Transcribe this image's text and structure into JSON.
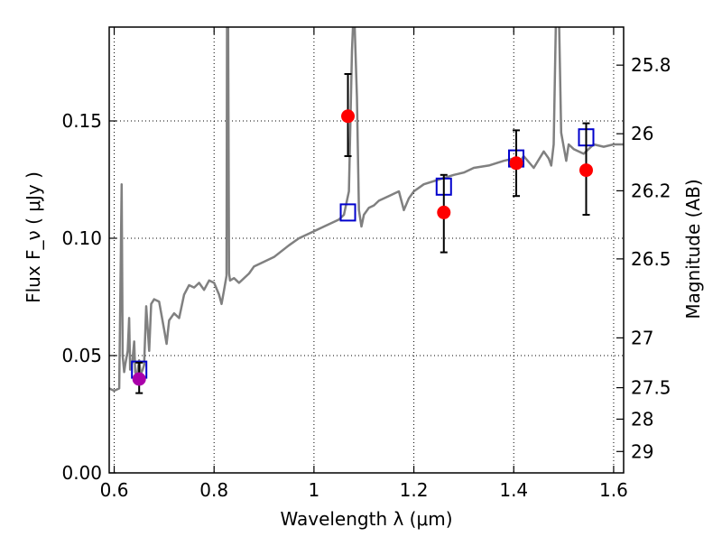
{
  "chart_data": {
    "type": "scatter",
    "xlabel": "Wavelength  λ (μm)",
    "ylabel": "Flux  F_ν  ( μJy )",
    "ylabel_right": "Magnitude (AB)",
    "xlim": [
      0.59,
      1.62
    ],
    "ylim": [
      0.0,
      0.19
    ],
    "x_ticks": [
      0.6,
      0.8,
      1.0,
      1.2,
      1.4,
      1.6
    ],
    "x_tick_labels": [
      "0.6",
      "0.8",
      "1",
      "1.2",
      "1.4",
      "1.6"
    ],
    "y_ticks": [
      0.0,
      0.05,
      0.1,
      0.15
    ],
    "y_tick_labels": [
      "0.00",
      "0.05",
      "0.10",
      "0.15"
    ],
    "right_ticks": [
      {
        "mag": 25.8,
        "label": "25.8"
      },
      {
        "mag": 26.0,
        "label": "26"
      },
      {
        "mag": 26.2,
        "label": "26.2"
      },
      {
        "mag": 26.5,
        "label": "26.5"
      },
      {
        "mag": 27.0,
        "label": "27"
      },
      {
        "mag": 27.5,
        "label": "27.5"
      },
      {
        "mag": 28.0,
        "label": "28"
      },
      {
        "mag": 29.0,
        "label": "29"
      }
    ],
    "grid": true,
    "colors": {
      "spectrum": "#808080",
      "observed": "#ff0000",
      "observed_uv": "#aa00aa",
      "model_box": "#0000cc",
      "errorbar": "#000000"
    },
    "spectrum": {
      "x": [
        0.59,
        0.6,
        0.61,
        0.615,
        0.617,
        0.62,
        0.622,
        0.627,
        0.63,
        0.632,
        0.636,
        0.64,
        0.642,
        0.645,
        0.648,
        0.65,
        0.653,
        0.657,
        0.66,
        0.664,
        0.67,
        0.674,
        0.68,
        0.69,
        0.7,
        0.705,
        0.71,
        0.72,
        0.73,
        0.74,
        0.75,
        0.76,
        0.77,
        0.78,
        0.79,
        0.8,
        0.81,
        0.815,
        0.82,
        0.825,
        0.826,
        0.828,
        0.83,
        0.832,
        0.84,
        0.85,
        0.87,
        0.88,
        0.9,
        0.92,
        0.95,
        0.97,
        1.0,
        1.02,
        1.05,
        1.06,
        1.07,
        1.076,
        1.08,
        1.086,
        1.09,
        1.095,
        1.1,
        1.11,
        1.12,
        1.13,
        1.15,
        1.17,
        1.18,
        1.19,
        1.2,
        1.22,
        1.25,
        1.28,
        1.3,
        1.32,
        1.35,
        1.38,
        1.4,
        1.41,
        1.42,
        1.44,
        1.46,
        1.47,
        1.475,
        1.48,
        1.485,
        1.49,
        1.495,
        1.5,
        1.505,
        1.51,
        1.52,
        1.54,
        1.56,
        1.58,
        1.6,
        1.62
      ],
      "y": [
        0.036,
        0.035,
        0.036,
        0.123,
        0.05,
        0.043,
        0.046,
        0.052,
        0.066,
        0.044,
        0.047,
        0.056,
        0.043,
        0.041,
        0.045,
        0.048,
        0.042,
        0.044,
        0.046,
        0.071,
        0.052,
        0.072,
        0.074,
        0.073,
        0.061,
        0.055,
        0.065,
        0.068,
        0.066,
        0.076,
        0.08,
        0.079,
        0.081,
        0.078,
        0.082,
        0.081,
        0.076,
        0.072,
        0.078,
        0.084,
        0.2,
        0.2,
        0.085,
        0.082,
        0.083,
        0.081,
        0.085,
        0.088,
        0.09,
        0.092,
        0.097,
        0.1,
        0.103,
        0.105,
        0.108,
        0.11,
        0.12,
        0.18,
        0.2,
        0.16,
        0.112,
        0.105,
        0.11,
        0.113,
        0.114,
        0.116,
        0.118,
        0.12,
        0.112,
        0.117,
        0.12,
        0.123,
        0.125,
        0.127,
        0.128,
        0.13,
        0.131,
        0.133,
        0.134,
        0.132,
        0.135,
        0.13,
        0.137,
        0.134,
        0.131,
        0.14,
        0.2,
        0.2,
        0.145,
        0.139,
        0.133,
        0.14,
        0.138,
        0.136,
        0.14,
        0.139,
        0.14,
        0.14
      ]
    },
    "observed": [
      {
        "x": 1.068,
        "y": 0.152,
        "yerr_lo": 0.135,
        "yerr_hi": 0.17
      },
      {
        "x": 1.26,
        "y": 0.111,
        "yerr_lo": 0.094,
        "yerr_hi": 0.127
      },
      {
        "x": 1.405,
        "y": 0.132,
        "yerr_lo": 0.118,
        "yerr_hi": 0.146
      },
      {
        "x": 1.545,
        "y": 0.129,
        "yerr_lo": 0.11,
        "yerr_hi": 0.149
      }
    ],
    "observed_uv": [
      {
        "x": 0.65,
        "y": 0.04,
        "yerr_lo": 0.034,
        "yerr_hi": 0.047
      }
    ],
    "model": [
      {
        "x": 0.65,
        "y": 0.044
      },
      {
        "x": 1.068,
        "y": 0.111
      },
      {
        "x": 1.26,
        "y": 0.122
      },
      {
        "x": 1.405,
        "y": 0.134
      },
      {
        "x": 1.545,
        "y": 0.143
      }
    ]
  }
}
